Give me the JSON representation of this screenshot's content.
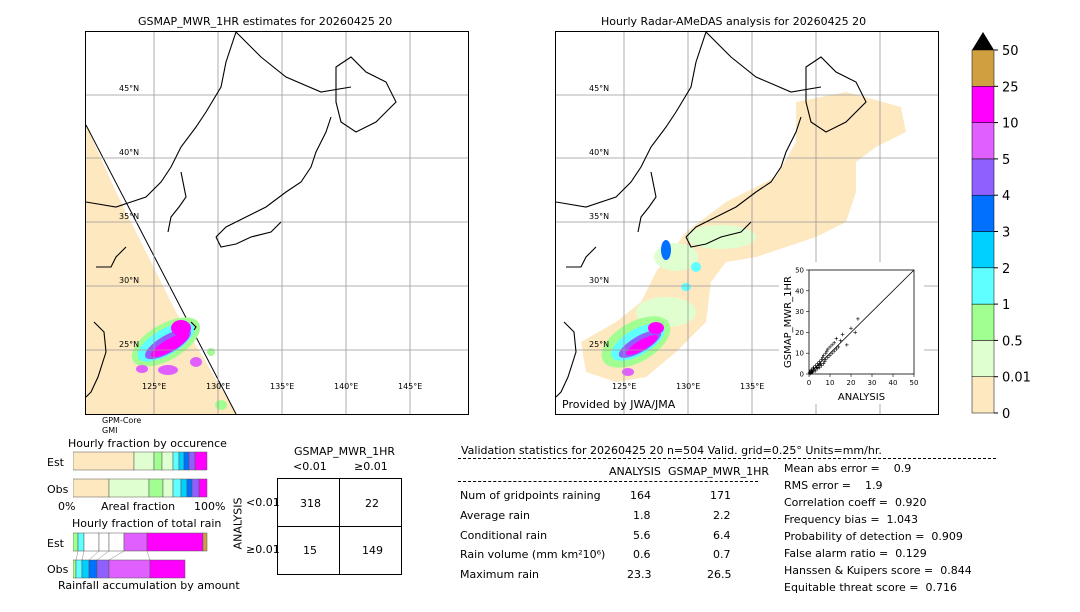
{
  "left_panel": {
    "title": "GSMAP_MWR_1HR estimates for 20260425 20",
    "lat_labels": [
      "45°N",
      "40°N",
      "35°N",
      "30°N",
      "25°N"
    ],
    "lon_labels": [
      "125°E",
      "130°E",
      "135°E",
      "140°E",
      "145°E"
    ],
    "sensor_line1": "GPM-Core",
    "sensor_line2": "GMI"
  },
  "right_panel": {
    "title": "Hourly Radar-AMeDAS analysis for 20260425 20",
    "lat_labels": [
      "45°N",
      "40°N",
      "35°N",
      "30°N",
      "25°N"
    ],
    "lon_labels": [
      "125°E",
      "130°E",
      "135°E"
    ],
    "credit": "Provided by JWA/JMA"
  },
  "colorbar": {
    "levels": [
      "0",
      "0.01",
      "0.5",
      "1",
      "2",
      "3",
      "4",
      "5",
      "10",
      "25",
      "50"
    ],
    "colors": [
      "#fde8bf",
      "#e0ffd0",
      "#a0ff90",
      "#60ffff",
      "#00d0ff",
      "#0070ff",
      "#9060ff",
      "#e060ff",
      "#ff00ff",
      "#d0a040"
    ],
    "extend_color": "#000000"
  },
  "scatter": {
    "xlabel": "ANALYSIS",
    "ylabel": "GSMAP_MWR_1HR",
    "ticks": [
      "0",
      "10",
      "20",
      "30",
      "40",
      "50"
    ]
  },
  "fraction_occurrence": {
    "title": "Hourly fraction by occurence",
    "rows": [
      "Est",
      "Obs"
    ],
    "axis_left": "0%",
    "axis_mid": "Areal fraction",
    "axis_right": "100%"
  },
  "fraction_total": {
    "title": "Hourly fraction of total rain",
    "rows": [
      "Est",
      "Obs"
    ],
    "footer": "Rainfall accumulation by amount"
  },
  "contingency": {
    "title": "GSMAP_MWR_1HR",
    "col_labels": [
      "<0.01",
      "≥0.01"
    ],
    "row_axis": "ANALYSIS",
    "row_labels": [
      "<0.01",
      "≥0.01"
    ],
    "cells": [
      [
        "318",
        "22"
      ],
      [
        "15",
        "149"
      ]
    ]
  },
  "validation": {
    "header": "Validation statistics for 20260425 20  n=504 Valid. grid=0.25° Units=mm/hr.",
    "col_headers": [
      "ANALYSIS",
      "GSMAP_MWR_1HR"
    ],
    "rows": [
      {
        "label": "Num of gridpoints raining",
        "a": "164",
        "b": "171"
      },
      {
        "label": "Average rain",
        "a": "1.8",
        "b": "2.2"
      },
      {
        "label": "Conditional rain",
        "a": "5.6",
        "b": "6.4"
      },
      {
        "label": "Rain volume (mm km²10⁶)",
        "a": "0.6",
        "b": "0.7"
      },
      {
        "label": "Maximum rain",
        "a": "23.3",
        "b": "26.5"
      }
    ],
    "scores": [
      "Mean abs error =    0.9",
      "RMS error =    1.9",
      "Correlation coeff =  0.920",
      "Frequency bias =  1.043",
      "Probability of detection =  0.909",
      "False alarm ratio =  0.129",
      "Hanssen & Kuipers score =  0.844",
      "Equitable threat score =  0.716"
    ]
  },
  "chart_data": {
    "type": "scatter",
    "title": "",
    "xlabel": "ANALYSIS",
    "ylabel": "GSMAP_MWR_1HR",
    "xlim": [
      0,
      50
    ],
    "ylim": [
      0,
      50
    ],
    "points": [
      [
        0.5,
        0.3
      ],
      [
        0.8,
        1.2
      ],
      [
        1,
        0.6
      ],
      [
        1.2,
        2
      ],
      [
        1.5,
        1
      ],
      [
        2,
        1.5
      ],
      [
        2,
        3
      ],
      [
        2.5,
        2
      ],
      [
        3,
        1.5
      ],
      [
        3,
        4
      ],
      [
        3.5,
        3
      ],
      [
        4,
        2.5
      ],
      [
        4,
        5
      ],
      [
        4.5,
        4
      ],
      [
        5,
        3
      ],
      [
        5,
        6
      ],
      [
        5.5,
        5
      ],
      [
        6,
        4
      ],
      [
        6,
        7
      ],
      [
        6.5,
        8
      ],
      [
        7,
        5
      ],
      [
        7,
        9
      ],
      [
        7.5,
        6
      ],
      [
        8,
        7
      ],
      [
        8,
        10
      ],
      [
        8.5,
        11
      ],
      [
        9,
        8
      ],
      [
        9,
        12
      ],
      [
        10,
        9
      ],
      [
        10,
        13
      ],
      [
        11,
        10
      ],
      [
        11,
        14
      ],
      [
        12,
        11
      ],
      [
        12,
        15
      ],
      [
        13,
        12
      ],
      [
        13,
        17
      ],
      [
        14,
        13
      ],
      [
        15,
        16
      ],
      [
        16,
        19
      ],
      [
        18,
        14
      ],
      [
        20,
        22
      ],
      [
        22,
        20
      ],
      [
        23.3,
        26.5
      ],
      [
        1,
        1.8
      ],
      [
        1.8,
        0.9
      ],
      [
        2.2,
        2.8
      ],
      [
        0.3,
        0.8
      ],
      [
        0.6,
        0.2
      ],
      [
        3.8,
        3.2
      ],
      [
        5.2,
        4.4
      ]
    ],
    "diagonal": [
      [
        0,
        0
      ],
      [
        50,
        50
      ]
    ]
  }
}
